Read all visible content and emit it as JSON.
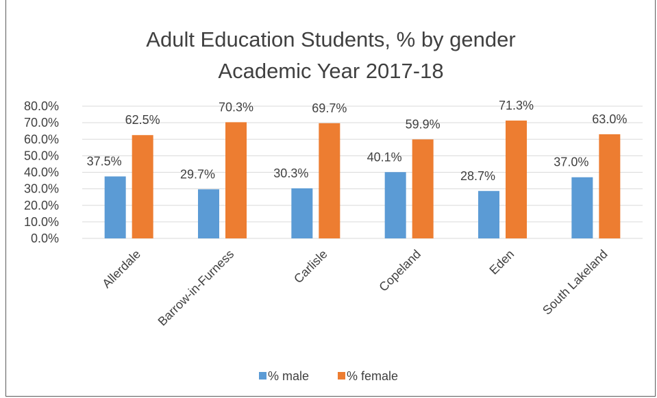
{
  "chart_data": {
    "type": "bar",
    "title": [
      "Adult Education Students, % by gender",
      "Academic Year 2017-18"
    ],
    "categories": [
      "Allerdale",
      "Barrow-in-Furness",
      "Carlisle",
      "Copeland",
      "Eden",
      "South Lakeland"
    ],
    "series": [
      {
        "name": "% male",
        "color": "#5b9bd5",
        "values": [
          37.5,
          29.7,
          30.3,
          40.1,
          28.7,
          37.0
        ],
        "labels": [
          "37.5%",
          "29.7%",
          "30.3%",
          "40.1%",
          "28.7%",
          "37.0%"
        ]
      },
      {
        "name": "% female",
        "color": "#ed7d31",
        "values": [
          62.5,
          70.3,
          69.7,
          59.9,
          71.3,
          63.0
        ],
        "labels": [
          "62.5%",
          "70.3%",
          "69.7%",
          "59.9%",
          "71.3%",
          "63.0%"
        ]
      }
    ],
    "ylim": [
      0,
      80
    ],
    "yticks": [
      0,
      10,
      20,
      30,
      40,
      50,
      60,
      70,
      80
    ],
    "ytick_labels": [
      "0.0%",
      "10.0%",
      "20.0%",
      "30.0%",
      "40.0%",
      "50.0%",
      "60.0%",
      "70.0%",
      "80.0%"
    ],
    "grid": true,
    "legend": "bottom"
  }
}
